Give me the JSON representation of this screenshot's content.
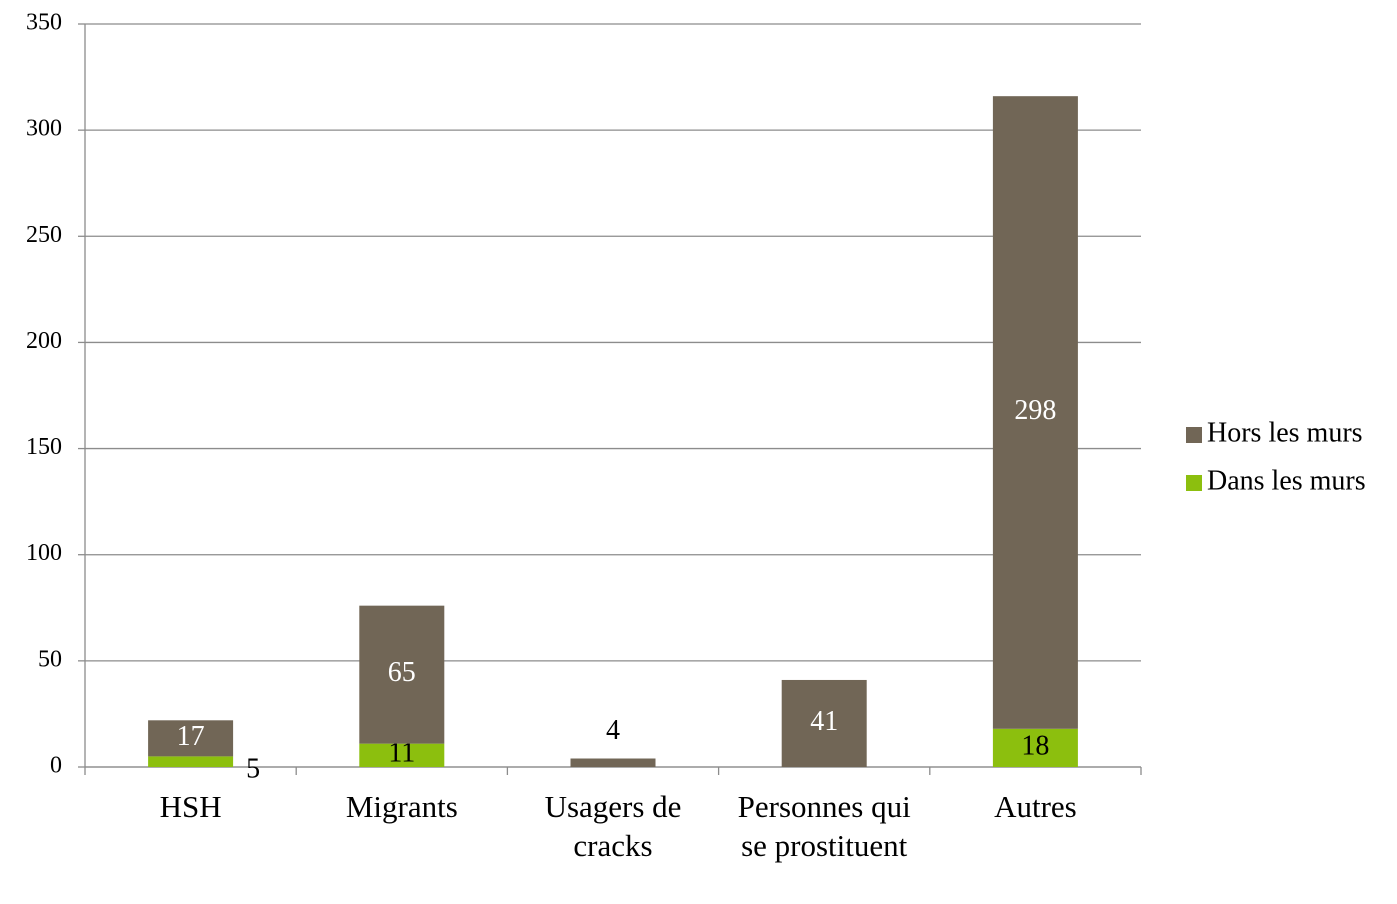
{
  "chart_data": {
    "type": "stacked_bar",
    "categories": [
      "HSH",
      "Migrants",
      "Usagers de cracks",
      "Personnes qui se prostituent",
      "Autres"
    ],
    "series": [
      {
        "name": "Dans les murs",
        "color": "#8cbf0e",
        "values": [
          5,
          11,
          null,
          null,
          18
        ]
      },
      {
        "name": "Hors les murs",
        "color": "#716656",
        "values": [
          17,
          65,
          4,
          41,
          298
        ]
      }
    ],
    "ylim": [
      0,
      350
    ],
    "yticks": [
      0,
      50,
      100,
      150,
      200,
      250,
      300,
      350
    ],
    "grid": true,
    "legend": "right"
  }
}
